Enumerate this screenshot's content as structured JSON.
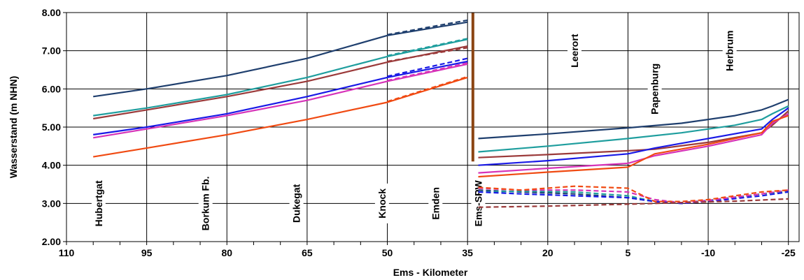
{
  "chart_data": {
    "type": "line",
    "title": "",
    "xlabel": "Ems - Kilometer",
    "ylabel": "Wasserstand (m NHN)",
    "xlim": [
      110,
      -27
    ],
    "ylim": [
      2.0,
      8.0
    ],
    "x_ticks": [
      110,
      95,
      80,
      65,
      50,
      35,
      20,
      5,
      -10,
      -25
    ],
    "y_ticks": [
      2.0,
      3.0,
      4.0,
      5.0,
      6.0,
      7.0,
      8.0
    ],
    "y_tick_labels": [
      "2.00",
      "3.00",
      "4.00",
      "5.00",
      "6.00",
      "7.00",
      "8.00"
    ],
    "grid": true,
    "legend": "none",
    "barrier": {
      "x": 34,
      "label": "Ems-SPW",
      "color": "#8B4513"
    },
    "stations": [
      {
        "name": "Hubertgat",
        "x": 104,
        "y": 3.0
      },
      {
        "name": "Borkum Fb.",
        "x": 84,
        "y": 3.0
      },
      {
        "name": "Dukegat",
        "x": 67,
        "y": 3.0
      },
      {
        "name": "Knock",
        "x": 51,
        "y": 3.0
      },
      {
        "name": "Emden",
        "x": 41,
        "y": 3.0
      },
      {
        "name": "Ems-SPW",
        "x": 33,
        "y": 3.0
      },
      {
        "name": "Leerort",
        "x": 15,
        "y": 7.0
      },
      {
        "name": "Papenburg",
        "x": 0,
        "y": 6.0
      },
      {
        "name": "Herbrum",
        "x": -14,
        "y": 7.0
      }
    ],
    "series": [
      {
        "color": "#1F3F6E",
        "dash": false,
        "x": [
          105,
          95,
          80,
          65,
          50,
          35
        ],
        "values": [
          5.8,
          6.0,
          6.35,
          6.8,
          7.4,
          7.75
        ]
      },
      {
        "color": "#1F3F6E",
        "dash": true,
        "x": [
          50,
          35
        ],
        "values": [
          7.42,
          7.8
        ]
      },
      {
        "color": "#1F9E9E",
        "dash": false,
        "x": [
          105,
          95,
          80,
          65,
          50,
          35
        ],
        "values": [
          5.3,
          5.5,
          5.85,
          6.3,
          6.85,
          7.3
        ]
      },
      {
        "color": "#1F9E9E",
        "dash": true,
        "x": [
          50,
          35
        ],
        "values": [
          6.87,
          7.32
        ]
      },
      {
        "color": "#9B3A3A",
        "dash": false,
        "x": [
          105,
          95,
          80,
          65,
          50,
          35
        ],
        "values": [
          5.22,
          5.45,
          5.8,
          6.2,
          6.7,
          7.12
        ]
      },
      {
        "color": "#9B3A3A",
        "dash": true,
        "x": [
          50,
          35
        ],
        "values": [
          6.72,
          7.08
        ]
      },
      {
        "color": "#1A1AE6",
        "dash": false,
        "x": [
          105,
          95,
          80,
          65,
          50,
          35
        ],
        "values": [
          4.8,
          5.0,
          5.35,
          5.8,
          6.3,
          6.72
        ]
      },
      {
        "color": "#1A1AE6",
        "dash": true,
        "x": [
          50,
          35
        ],
        "values": [
          6.33,
          6.8
        ]
      },
      {
        "color": "#D633B8",
        "dash": false,
        "x": [
          105,
          95,
          80,
          65,
          50,
          35
        ],
        "values": [
          4.72,
          4.95,
          5.3,
          5.7,
          6.2,
          6.65
        ]
      },
      {
        "color": "#D633B8",
        "dash": true,
        "x": [
          50,
          35
        ],
        "values": [
          6.22,
          6.68
        ]
      },
      {
        "color": "#F04A12",
        "dash": false,
        "x": [
          105,
          95,
          80,
          65,
          50,
          35
        ],
        "values": [
          4.22,
          4.45,
          4.8,
          5.2,
          5.65,
          6.3
        ]
      },
      {
        "color": "#F04A12",
        "dash": true,
        "x": [
          50,
          35
        ],
        "values": [
          5.67,
          6.32
        ]
      },
      {
        "color": "#1F3F6E",
        "dash": false,
        "x": [
          33,
          20,
          5,
          -5,
          -15,
          -20,
          -22,
          -25
        ],
        "values": [
          4.7,
          4.82,
          4.98,
          5.1,
          5.3,
          5.45,
          5.55,
          5.72
        ]
      },
      {
        "color": "#1F9E9E",
        "dash": false,
        "x": [
          33,
          20,
          5,
          -5,
          -15,
          -20,
          -22,
          -25
        ],
        "values": [
          4.35,
          4.5,
          4.7,
          4.85,
          5.05,
          5.2,
          5.35,
          5.55
        ]
      },
      {
        "color": "#9B3A3A",
        "dash": false,
        "x": [
          33,
          20,
          5,
          0,
          -10,
          -20,
          -22,
          -25
        ],
        "values": [
          4.2,
          4.28,
          4.38,
          4.42,
          4.6,
          4.85,
          5.05,
          5.42
        ]
      },
      {
        "color": "#1A1AE6",
        "dash": false,
        "x": [
          33,
          20,
          5,
          0,
          -10,
          -20,
          -22,
          -25
        ],
        "values": [
          4.0,
          4.12,
          4.3,
          4.45,
          4.7,
          4.95,
          5.2,
          5.5
        ]
      },
      {
        "color": "#D633B8",
        "dash": false,
        "x": [
          33,
          20,
          5,
          0,
          -10,
          -20,
          -22,
          -25
        ],
        "values": [
          3.8,
          3.92,
          4.05,
          4.25,
          4.5,
          4.8,
          5.1,
          5.35
        ]
      },
      {
        "color": "#F04A12",
        "dash": false,
        "x": [
          33,
          20,
          5,
          0,
          -10,
          -20,
          -22,
          -25
        ],
        "values": [
          3.7,
          3.82,
          3.95,
          4.3,
          4.55,
          4.85,
          5.15,
          5.3
        ]
      },
      {
        "color": "#1F3F6E",
        "dash": true,
        "x": [
          33,
          25,
          15,
          5,
          0,
          -5,
          -10,
          -20,
          -25
        ],
        "values": [
          3.35,
          3.3,
          3.25,
          3.15,
          3.05,
          3.0,
          3.05,
          3.25,
          3.32
        ]
      },
      {
        "color": "#1F9E9E",
        "dash": true,
        "x": [
          33,
          25,
          15,
          5,
          0,
          -5,
          -10,
          -20,
          -25
        ],
        "values": [
          3.3,
          3.32,
          3.3,
          3.2,
          3.05,
          3.02,
          3.08,
          3.25,
          3.3
        ]
      },
      {
        "color": "#1A1AE6",
        "dash": true,
        "x": [
          33,
          25,
          15,
          5,
          0,
          -5,
          -10,
          -20,
          -25
        ],
        "values": [
          3.3,
          3.25,
          3.2,
          3.15,
          3.05,
          3.0,
          3.05,
          3.2,
          3.3
        ]
      },
      {
        "color": "#D633B8",
        "dash": true,
        "x": [
          33,
          25,
          15,
          5,
          0,
          -5,
          -10,
          -20,
          -25
        ],
        "values": [
          3.4,
          3.35,
          3.35,
          3.3,
          3.1,
          3.02,
          3.08,
          3.25,
          3.35
        ]
      },
      {
        "color": "#F04A12",
        "dash": true,
        "x": [
          33,
          25,
          15,
          5,
          0,
          -5,
          -10,
          -20,
          -25
        ],
        "values": [
          3.42,
          3.35,
          3.45,
          3.4,
          3.05,
          3.05,
          3.1,
          3.3,
          3.35
        ]
      },
      {
        "color": "#9B3A3A",
        "dash": true,
        "x": [
          33,
          20,
          5,
          -5,
          -15,
          -25
        ],
        "values": [
          2.9,
          2.93,
          2.98,
          3.02,
          3.06,
          3.12
        ]
      }
    ]
  }
}
